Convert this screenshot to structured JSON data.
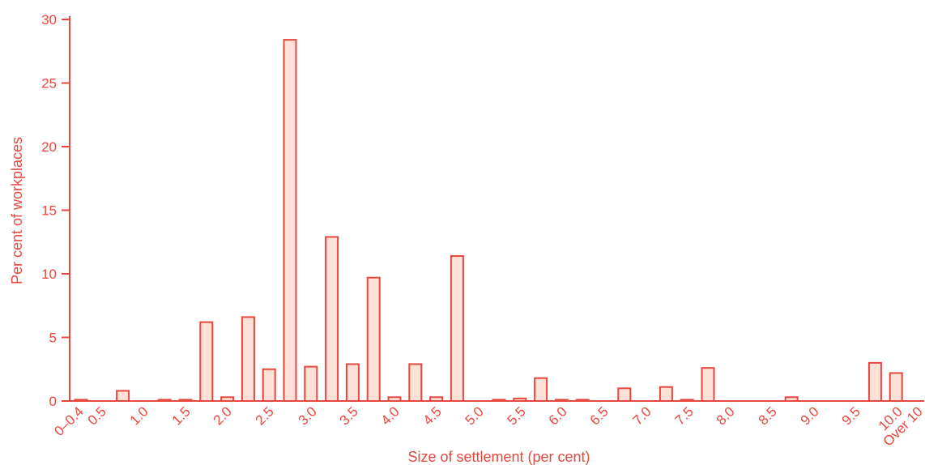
{
  "chart_data": {
    "type": "bar",
    "title": "",
    "xlabel": "Size of settlement (per cent)",
    "ylabel": "Per cent of workplaces",
    "ylim": [
      0,
      30
    ],
    "yticks": [
      0,
      5,
      10,
      15,
      20,
      25,
      30
    ],
    "grid": false,
    "x_tick_labels": [
      "0–0.4",
      "0.5",
      "1.0",
      "1.5",
      "2.0",
      "2.5",
      "3.0",
      "3.5",
      "4.0",
      "4.5",
      "5.0",
      "5.5",
      "6.0",
      "6.5",
      "7.0",
      "7.5",
      "8.0",
      "8.5",
      "9.0",
      "9.5",
      "10.0",
      "Over 10"
    ],
    "categories": [
      "0–0.4",
      "",
      "1.0",
      "",
      "1.5",
      "",
      "2.0",
      "",
      "2.5",
      "",
      "3.0",
      "",
      "3.5",
      "",
      "4.0",
      "",
      "4.5",
      "",
      "5.0",
      "",
      "5.5",
      "",
      "6.0",
      "",
      "6.5",
      "",
      "7.0",
      "",
      "7.5",
      "",
      "8.0",
      "",
      "",
      "",
      "9.0",
      "",
      "",
      "",
      "10.0",
      "Over 10"
    ],
    "values": [
      0.1,
      0,
      0.8,
      0,
      0.1,
      0.1,
      6.2,
      0.3,
      6.6,
      2.5,
      28.4,
      2.7,
      12.9,
      2.9,
      9.7,
      0.3,
      2.9,
      0.3,
      11.4,
      0,
      0.1,
      0.2,
      1.8,
      0.1,
      0.1,
      0,
      1.0,
      0,
      1.1,
      0.1,
      2.6,
      0,
      0,
      0,
      0.3,
      0,
      0,
      0,
      3.0,
      2.2
    ],
    "colors": {
      "bar_fill": "#fde0d6",
      "stroke": "#e8473e",
      "text": "#e8473e"
    }
  }
}
